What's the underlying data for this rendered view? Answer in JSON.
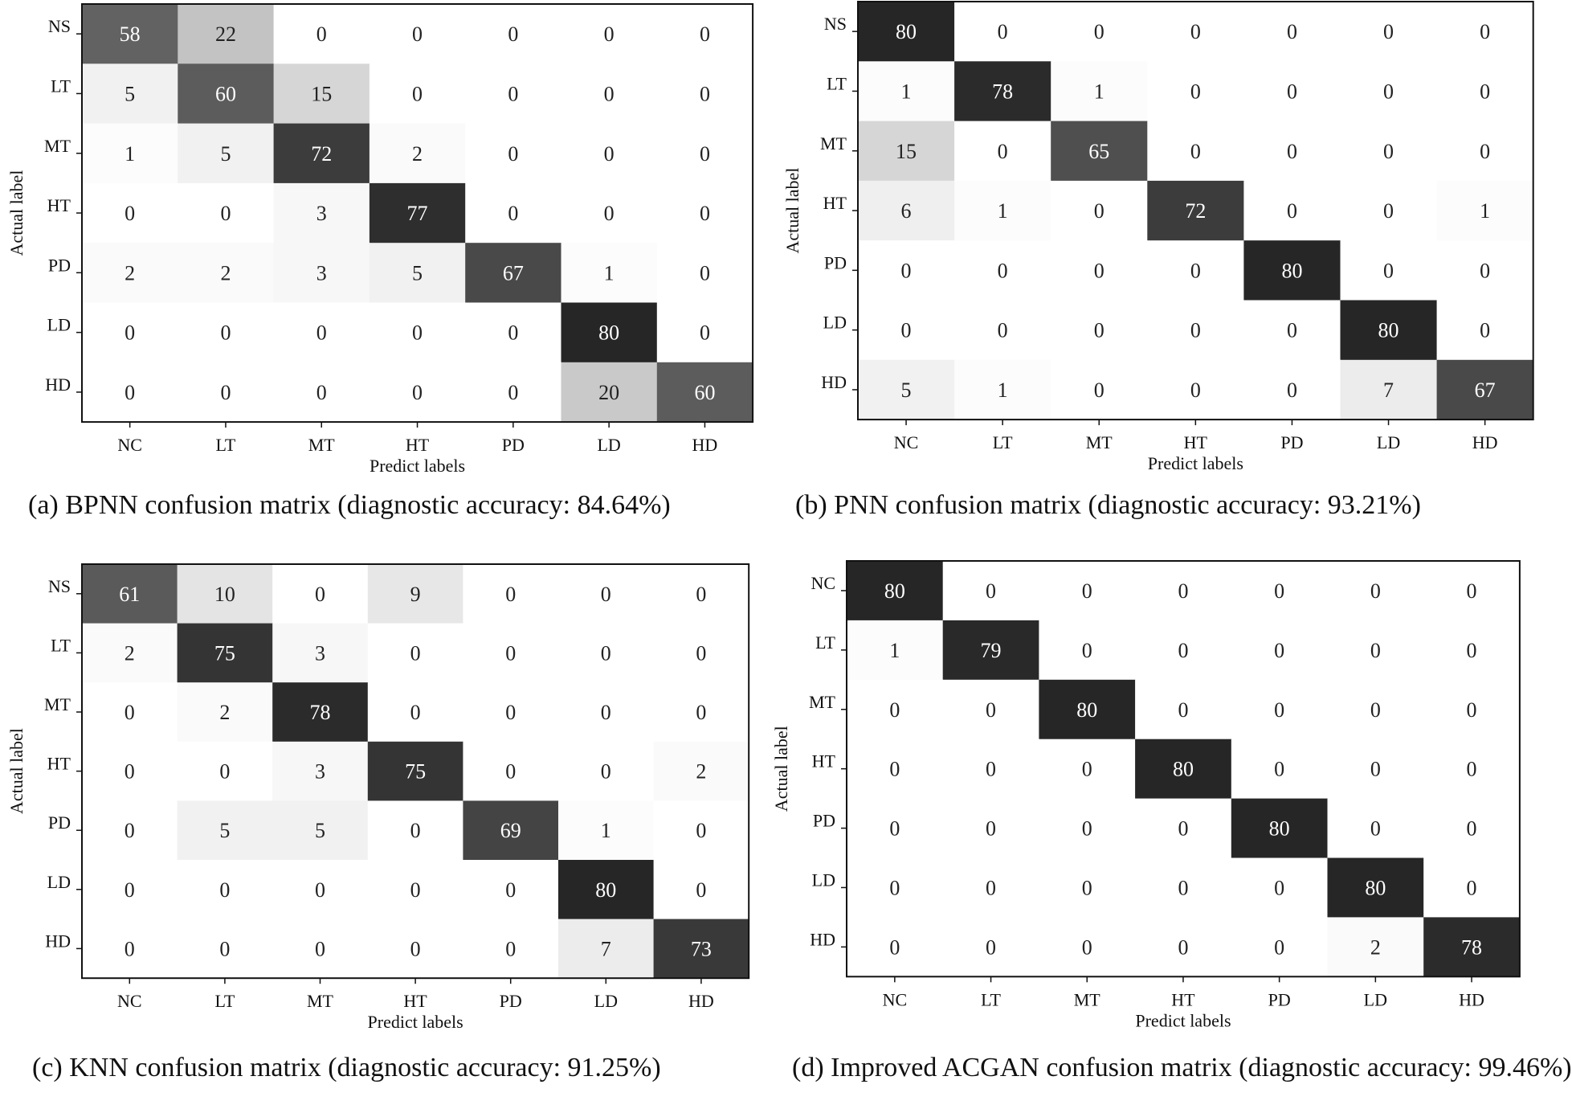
{
  "chart_data": [
    {
      "type": "heatmap",
      "title": "",
      "caption": "(a) BPNN confusion matrix (diagnostic accuracy: 84.64%)",
      "xlabel": "Predict labels",
      "ylabel": "Actual label",
      "x_categories": [
        "NC",
        "LT",
        "MT",
        "HT",
        "PD",
        "LD",
        "HD"
      ],
      "y_categories": [
        "NS",
        "LT",
        "MT",
        "HT",
        "PD",
        "LD",
        "HD"
      ],
      "values": [
        [
          58,
          22,
          0,
          0,
          0,
          0,
          0
        ],
        [
          5,
          60,
          15,
          0,
          0,
          0,
          0
        ],
        [
          1,
          5,
          72,
          2,
          0,
          0,
          0
        ],
        [
          0,
          0,
          3,
          77,
          0,
          0,
          0
        ],
        [
          2,
          2,
          3,
          5,
          67,
          1,
          0
        ],
        [
          0,
          0,
          0,
          0,
          0,
          80,
          0
        ],
        [
          0,
          0,
          0,
          0,
          0,
          20,
          60
        ]
      ],
      "vmax": 80
    },
    {
      "type": "heatmap",
      "title": "",
      "caption": "(b) PNN confusion matrix (diagnostic accuracy: 93.21%)",
      "xlabel": "Predict labels",
      "ylabel": "Actual label",
      "x_categories": [
        "NC",
        "LT",
        "MT",
        "HT",
        "PD",
        "LD",
        "HD"
      ],
      "y_categories": [
        "NS",
        "LT",
        "MT",
        "HT",
        "PD",
        "LD",
        "HD"
      ],
      "values": [
        [
          80,
          0,
          0,
          0,
          0,
          0,
          0
        ],
        [
          1,
          78,
          1,
          0,
          0,
          0,
          0
        ],
        [
          15,
          0,
          65,
          0,
          0,
          0,
          0
        ],
        [
          6,
          1,
          0,
          72,
          0,
          0,
          1
        ],
        [
          0,
          0,
          0,
          0,
          80,
          0,
          0
        ],
        [
          0,
          0,
          0,
          0,
          0,
          80,
          0
        ],
        [
          5,
          1,
          0,
          0,
          0,
          7,
          67
        ]
      ],
      "vmax": 80
    },
    {
      "type": "heatmap",
      "title": "",
      "caption": "(c) KNN confusion matrix (diagnostic accuracy: 91.25%)",
      "xlabel": "Predict labels",
      "ylabel": "Actual label",
      "x_categories": [
        "NC",
        "LT",
        "MT",
        "HT",
        "PD",
        "LD",
        "HD"
      ],
      "y_categories": [
        "NS",
        "LT",
        "MT",
        "HT",
        "PD",
        "LD",
        "HD"
      ],
      "values": [
        [
          61,
          10,
          0,
          9,
          0,
          0,
          0
        ],
        [
          2,
          75,
          3,
          0,
          0,
          0,
          0
        ],
        [
          0,
          2,
          78,
          0,
          0,
          0,
          0
        ],
        [
          0,
          0,
          3,
          75,
          0,
          0,
          2
        ],
        [
          0,
          5,
          5,
          0,
          69,
          1,
          0
        ],
        [
          0,
          0,
          0,
          0,
          0,
          80,
          0
        ],
        [
          0,
          0,
          0,
          0,
          0,
          7,
          73
        ]
      ],
      "vmax": 80
    },
    {
      "type": "heatmap",
      "title": "",
      "caption": "(d) Improved ACGAN confusion matrix (diagnostic accuracy: 99.46%)",
      "xlabel": "Predict labels",
      "ylabel": "Actual label",
      "x_categories": [
        "NC",
        "LT",
        "MT",
        "HT",
        "PD",
        "LD",
        "HD"
      ],
      "y_categories": [
        "NC",
        "LT",
        "MT",
        "HT",
        "PD",
        "LD",
        "HD"
      ],
      "values": [
        [
          80,
          0,
          0,
          0,
          0,
          0,
          0
        ],
        [
          1,
          79,
          0,
          0,
          0,
          0,
          0
        ],
        [
          0,
          0,
          80,
          0,
          0,
          0,
          0
        ],
        [
          0,
          0,
          0,
          80,
          0,
          0,
          0
        ],
        [
          0,
          0,
          0,
          0,
          80,
          0,
          0
        ],
        [
          0,
          0,
          0,
          0,
          0,
          80,
          0
        ],
        [
          0,
          0,
          0,
          0,
          0,
          2,
          78
        ]
      ],
      "vmax": 80
    }
  ],
  "colors": {
    "low": "#ffffff",
    "high": "#262626",
    "light_text": "#ffffff",
    "dark_text": "#222222",
    "frame": "#111111"
  }
}
